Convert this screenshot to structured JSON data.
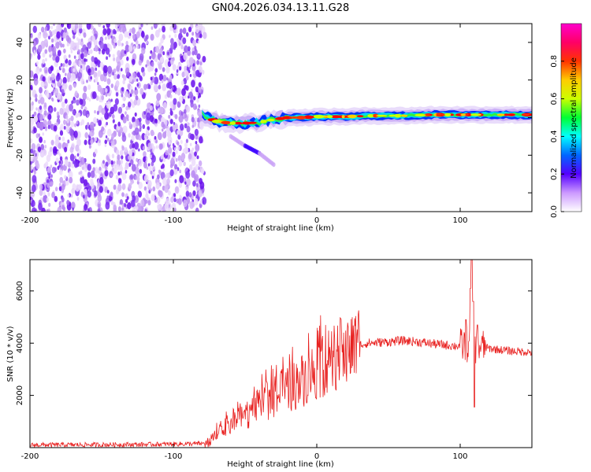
{
  "title": "GN04.2026.034.13.11.G28",
  "chart_data": [
    {
      "type": "heatmap",
      "name": "spectrogram",
      "xlabel": "Height of straight line (km)",
      "ylabel": "Frequency (Hz)",
      "xlim": [
        -200,
        150
      ],
      "ylim": [
        -50,
        50
      ],
      "xticks": [
        -200,
        -100,
        0,
        100
      ],
      "yticks": [
        -40,
        -20,
        0,
        20,
        40
      ],
      "colorbar": {
        "label": "Normalized spectral amplitude",
        "range": [
          0,
          1
        ],
        "ticks": [
          "0.0",
          "0.2",
          "0.4",
          "0.6",
          "0.8"
        ],
        "tick_values": [
          0.0,
          0.2,
          0.4,
          0.6,
          0.8
        ],
        "colors": [
          "#ffffff",
          "#cc99ff",
          "#5500ff",
          "#0066ff",
          "#00ffff",
          "#00ff33",
          "#ccff00",
          "#ffcc00",
          "#ff3300",
          "#ff0066",
          "#ff00cc"
        ]
      },
      "noise_region_x": [
        -200,
        -78
      ],
      "signal_track": [
        {
          "x": -80,
          "f": 1.5
        },
        {
          "x": -70,
          "f": -2
        },
        {
          "x": -60,
          "f": -3
        },
        {
          "x": -50,
          "f": -3
        },
        {
          "x": -40,
          "f": -2.5
        },
        {
          "x": -30,
          "f": -1
        },
        {
          "x": -20,
          "f": 0
        },
        {
          "x": -10,
          "f": 0
        },
        {
          "x": 0,
          "f": 0.5
        },
        {
          "x": 10,
          "f": 0.5
        },
        {
          "x": 20,
          "f": 0.5
        },
        {
          "x": 40,
          "f": 1
        },
        {
          "x": 60,
          "f": 1
        },
        {
          "x": 80,
          "f": 1.5
        },
        {
          "x": 100,
          "f": 1.5
        },
        {
          "x": 120,
          "f": 1.5
        },
        {
          "x": 150,
          "f": 1.5
        }
      ],
      "secondary_track": [
        {
          "x": -60,
          "f": -10
        },
        {
          "x": -50,
          "f": -15
        },
        {
          "x": -40,
          "f": -19
        },
        {
          "x": -30,
          "f": -25
        }
      ]
    },
    {
      "type": "line",
      "name": "snr",
      "xlabel": "Height of straight line (km)",
      "ylabel": "SNR (10 * v/v)",
      "xlim": [
        -200,
        150
      ],
      "ylim": [
        0,
        7200
      ],
      "xticks": [
        -200,
        -100,
        0,
        100
      ],
      "yticks": [
        2000,
        4000,
        6000
      ],
      "color": "#e8201f",
      "envelope": [
        {
          "x": -200,
          "y": 100
        },
        {
          "x": -120,
          "y": 120
        },
        {
          "x": -80,
          "y": 150
        },
        {
          "x": -74,
          "y": 250
        },
        {
          "x": -65,
          "y": 700
        },
        {
          "x": -55,
          "y": 1100
        },
        {
          "x": -45,
          "y": 1400
        },
        {
          "x": -35,
          "y": 1800
        },
        {
          "x": -25,
          "y": 2100
        },
        {
          "x": -15,
          "y": 2400
        },
        {
          "x": -5,
          "y": 2800
        },
        {
          "x": 5,
          "y": 3200
        },
        {
          "x": 15,
          "y": 3550
        },
        {
          "x": 25,
          "y": 3850
        },
        {
          "x": 35,
          "y": 4000
        },
        {
          "x": 50,
          "y": 4050
        },
        {
          "x": 60,
          "y": 4100
        },
        {
          "x": 70,
          "y": 4050
        },
        {
          "x": 85,
          "y": 3950
        },
        {
          "x": 95,
          "y": 3900
        },
        {
          "x": 100,
          "y": 3900
        },
        {
          "x": 105,
          "y": 3950
        },
        {
          "x": 112,
          "y": 3900
        },
        {
          "x": 120,
          "y": 3800
        },
        {
          "x": 135,
          "y": 3700
        },
        {
          "x": 150,
          "y": 3650
        }
      ],
      "peaks": [
        {
          "x": 104,
          "y": 4900
        },
        {
          "x": 107,
          "y": 6100
        },
        {
          "x": 108,
          "y": 7200
        },
        {
          "x": 109,
          "y": 5600
        },
        {
          "x": 110,
          "y": 1550
        },
        {
          "x": 112,
          "y": 4700
        }
      ]
    }
  ]
}
